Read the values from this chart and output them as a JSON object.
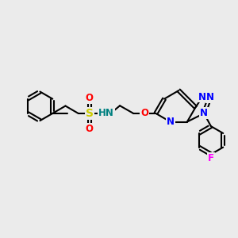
{
  "bg_color": "#ebebeb",
  "bond_color": "#000000",
  "bond_width": 1.5,
  "atom_colors": {
    "N": "#0000ff",
    "O": "#ff0000",
    "S": "#cccc00",
    "F": "#ff00ff",
    "H_label": "#008080",
    "C": "#000000"
  },
  "font_size": 8.5,
  "figsize": [
    3.0,
    3.0
  ],
  "dpi": 100
}
